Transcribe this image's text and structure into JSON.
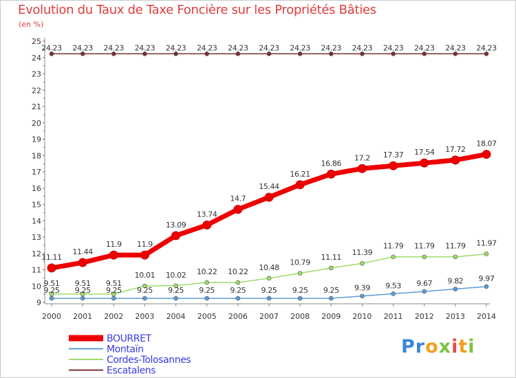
{
  "title": "Evolution du Taux de Taxe Foncière sur les Propriétés Bâties",
  "unit_label": "(en %)",
  "logo": {
    "text": "Proxiti",
    "parts": [
      "Pr",
      "o",
      "x",
      "i",
      "t",
      "i"
    ]
  },
  "chart_data": {
    "type": "line",
    "title": "Evolution du Taux de Taxe Foncière sur les Propriétés Bâties",
    "ylabel": "(en %)",
    "xlabel": "",
    "x": [
      2000,
      2001,
      2002,
      2003,
      2004,
      2005,
      2006,
      2007,
      2008,
      2009,
      2010,
      2011,
      2012,
      2013,
      2014
    ],
    "x_tick_labels": [
      "2000",
      "2001",
      "2002",
      "2003",
      "2004",
      "2005",
      "2006",
      "2007",
      "2008",
      "2009",
      "2010",
      "2011",
      "2012",
      "2013",
      "2014"
    ],
    "ylim": [
      9,
      25
    ],
    "y_ticks": [
      "9",
      "10",
      "11",
      "12",
      "13",
      "14",
      "15",
      "16",
      "17",
      "18",
      "19",
      "20",
      "21",
      "22",
      "23",
      "24",
      "25"
    ],
    "grid": false,
    "legend_position": "bottom-left",
    "series": [
      {
        "name": "BOURRET",
        "color": "#ee0000",
        "values": [
          11.11,
          11.44,
          11.9,
          11.9,
          13.09,
          13.74,
          14.7,
          15.44,
          16.21,
          16.86,
          17.2,
          17.37,
          17.54,
          17.72,
          18.07
        ],
        "labels": [
          "11.11",
          "11.44",
          "11.9",
          "11.9",
          "13.09",
          "13.74",
          "14.7",
          "15.44",
          "16.21",
          "16.86",
          "17.2",
          "17.37",
          "17.54",
          "17.72",
          "18.07"
        ]
      },
      {
        "name": "Montaïn",
        "color": "#5b9bd5",
        "values": [
          9.25,
          9.25,
          9.25,
          9.25,
          9.25,
          9.25,
          9.25,
          9.25,
          9.25,
          9.25,
          9.39,
          9.53,
          9.67,
          9.82,
          9.97
        ],
        "labels": [
          "9.25",
          "9.25",
          "9.25",
          "9.25",
          "9.25",
          "9.25",
          "9.25",
          "9.25",
          "9.25",
          "9.25",
          "9.39",
          "9.53",
          "9.67",
          "9.82",
          "9.97"
        ]
      },
      {
        "name": "Cordes-Tolosannes",
        "color": "#9edb6a",
        "values": [
          9.51,
          9.51,
          9.51,
          10.01,
          10.02,
          10.22,
          10.22,
          10.48,
          10.79,
          11.11,
          11.39,
          11.79,
          11.79,
          11.79,
          11.97
        ],
        "labels": [
          "9.51",
          "9.51",
          "9.51",
          "10.01",
          "10.02",
          "10.22",
          "10.22",
          "10.48",
          "10.79",
          "11.11",
          "11.39",
          "11.79",
          "11.79",
          "11.79",
          "11.97"
        ]
      },
      {
        "name": "Escatalens",
        "color": "#7a3030",
        "values": [
          24.23,
          24.23,
          24.23,
          24.23,
          24.23,
          24.23,
          24.23,
          24.23,
          24.23,
          24.23,
          24.23,
          24.23,
          24.23,
          24.23,
          24.23
        ],
        "labels": [
          "24.23",
          "24.23",
          "24.23",
          "24.23",
          "24.23",
          "24.23",
          "24.23",
          "24.23",
          "24.23",
          "24.23",
          "24.23",
          "24.23",
          "24.23",
          "24.23",
          "24.23"
        ]
      }
    ]
  }
}
